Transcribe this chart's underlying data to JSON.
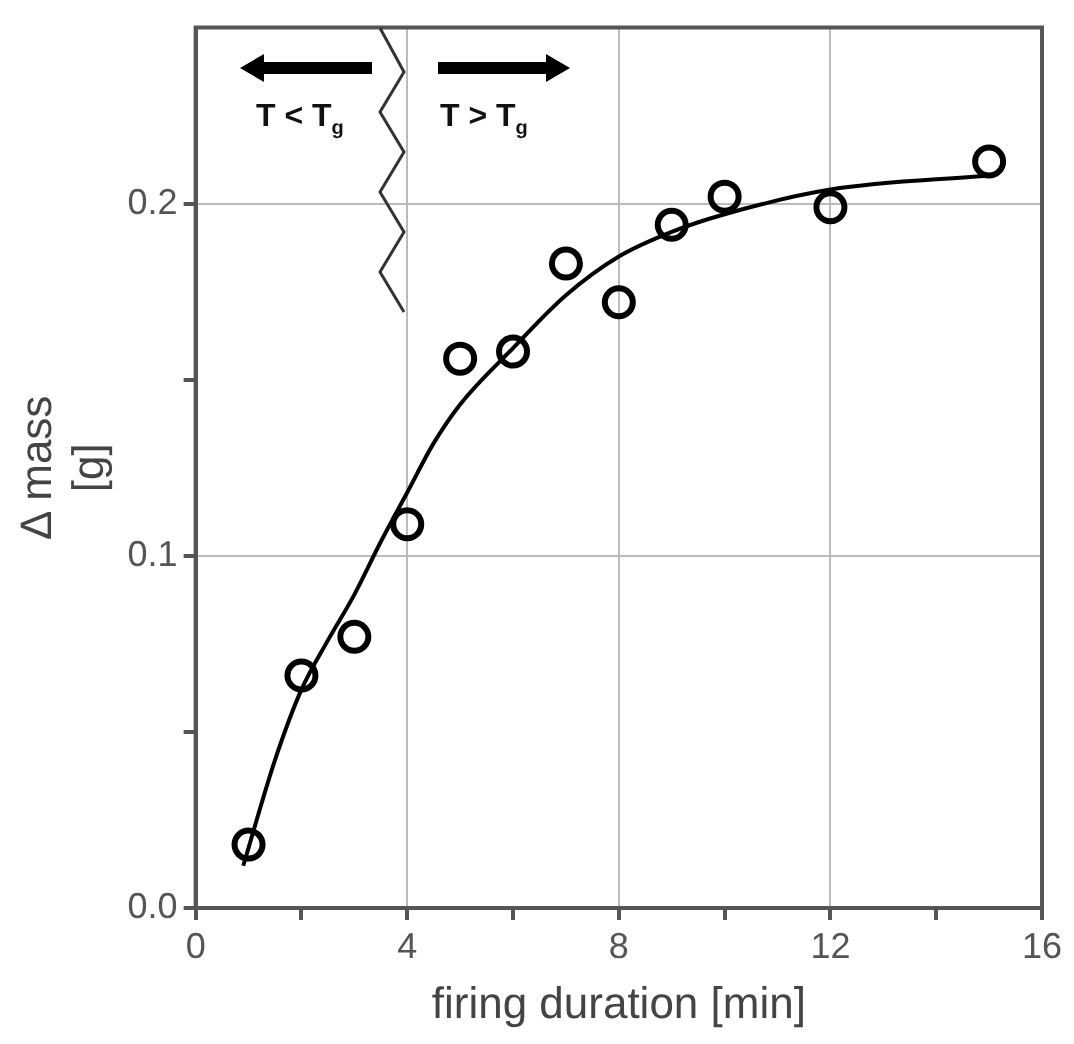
{
  "chart_data": {
    "type": "scatter",
    "xlabel": "firing duration [min]",
    "ylabel": "Δ mass [g]",
    "xlim": [
      0,
      16
    ],
    "xticks": [
      0,
      {
        "value": 2,
        "label": null
      },
      4,
      {
        "value": 6,
        "label": null
      },
      8,
      {
        "value": 10,
        "label": null
      },
      12,
      {
        "value": 14,
        "label": null
      },
      16
    ],
    "ylim": [
      0,
      0.25
    ],
    "yticks": [
      {
        "value": 0,
        "label": "0.0"
      },
      {
        "value": 0.05,
        "label": null
      },
      0.1,
      {
        "value": 0.15,
        "label": null
      },
      0.2
    ],
    "grid": true,
    "marker": "circle",
    "annotations": [
      "T < T$_{g}$",
      "T > T$_{g}$"
    ],
    "series": [
      {
        "type": "scatter",
        "color": "#000000",
        "x": [
          1,
          2,
          3,
          4,
          5,
          6,
          7,
          8,
          9,
          10,
          12,
          15
        ],
        "values": [
          0.018,
          0.066,
          0.077,
          0.109,
          0.156,
          0.158,
          0.183,
          0.172,
          0.194,
          0.202,
          0.199,
          0.212
        ]
      },
      {
        "type": "line",
        "color": "#000000",
        "marker": "none",
        "x": [
          0.9,
          1.5,
          2,
          2.5,
          3,
          3.5,
          4,
          4.5,
          5,
          6,
          7,
          8,
          9,
          10,
          12,
          15
        ],
        "values": [
          0.012,
          0.042,
          0.062,
          0.076,
          0.089,
          0.104,
          0.118,
          0.132,
          0.143,
          0.159,
          0.174,
          0.185,
          0.192,
          0.197,
          0.204,
          0.208
        ]
      }
    ]
  }
}
